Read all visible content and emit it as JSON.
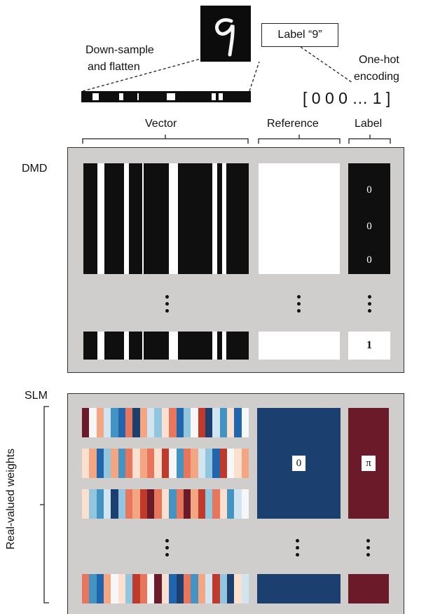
{
  "top": {
    "downsample_label_line1": "Down-sample",
    "downsample_label_line2": "and flatten",
    "label_box": "Label “9”",
    "onehot_line1": "One-hot",
    "onehot_line2": "encoding",
    "onehot_vector": "[ 0 0 0 … 1 ]",
    "bracket_vector": "Vector",
    "bracket_reference": "Reference",
    "bracket_label": "Label"
  },
  "dmd": {
    "title": "DMD",
    "label_values": [
      "0",
      "0",
      "0"
    ],
    "last_label_value": "1"
  },
  "slm": {
    "title": "SLM",
    "side_label": "Real-valued weights",
    "reference_phase": "0",
    "label_phase": "π"
  },
  "colors": {
    "panel_bg": "#cfcecd",
    "dark_red": "#6b1a2a",
    "dark_blue": "#1b3f6e",
    "stripe_palette": [
      "#6b1a2a",
      "#c0392b",
      "#e8765d",
      "#f4a582",
      "#fbe0d0",
      "#f7f7f7",
      "#d1e5f0",
      "#92c5de",
      "#4393c3",
      "#2166ac",
      "#1b3f6e"
    ]
  }
}
